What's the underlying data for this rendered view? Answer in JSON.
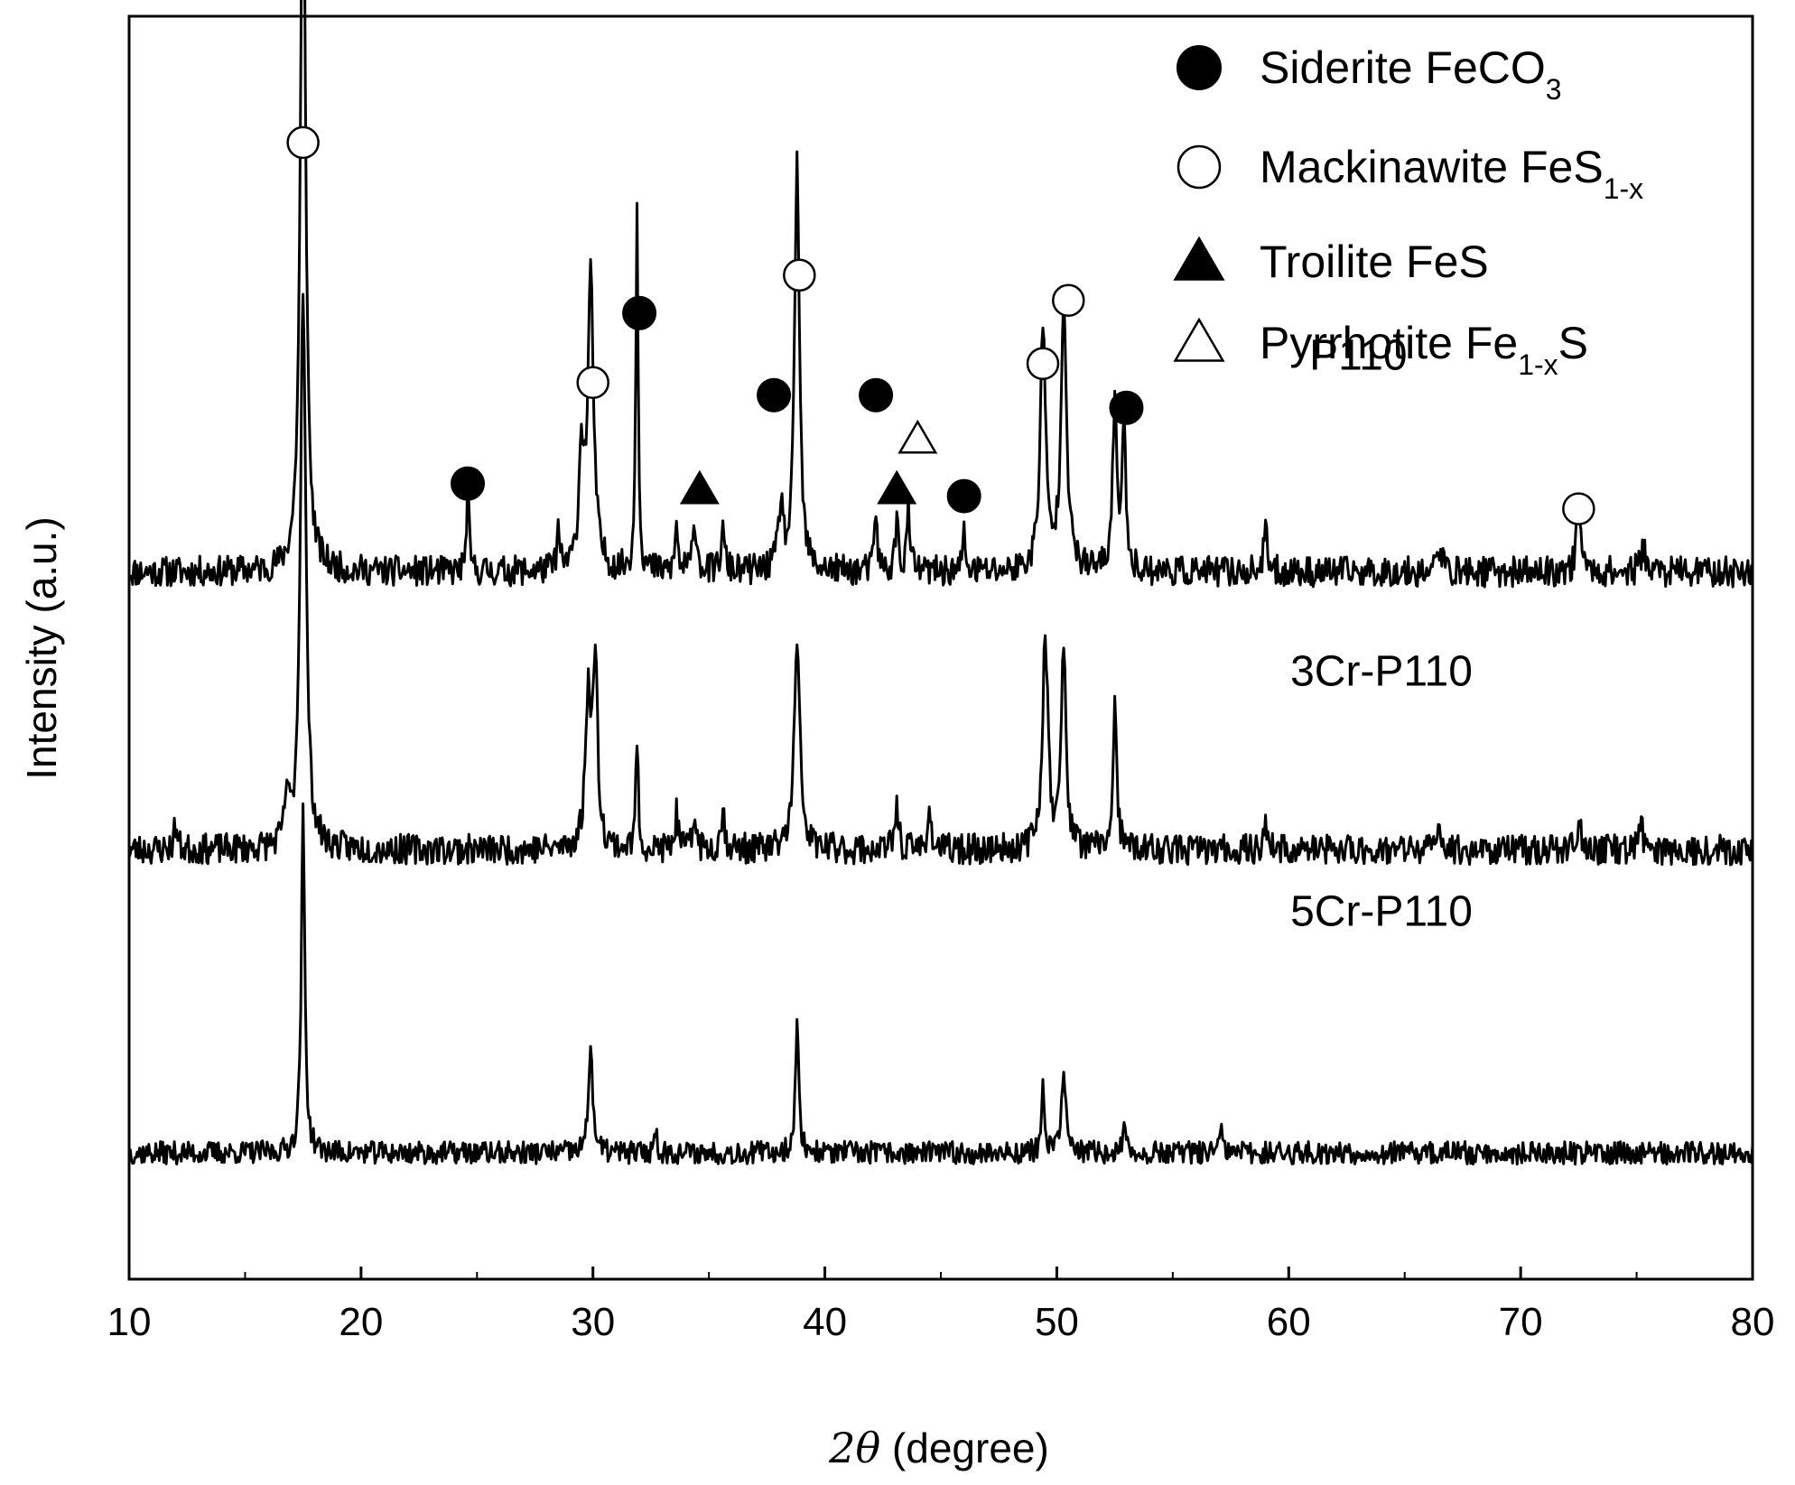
{
  "chart_data": {
    "type": "line",
    "xlabel_prefix": "2",
    "xlabel_symbol": "θ",
    "xlabel_suffix": " (degree)",
    "ylabel": "Intensity (a.u.)",
    "xlim": [
      10,
      80
    ],
    "xticks": [
      "10",
      "20",
      "30",
      "40",
      "50",
      "60",
      "70",
      "80"
    ],
    "y_ticks_shown": false,
    "series": [
      {
        "name": "P110",
        "baseline": 0.56,
        "noise": 0.012,
        "seed": 11,
        "peaks": [
          {
            "x": 17.5,
            "h": 0.62,
            "w": 0.13
          },
          {
            "x": 24.6,
            "h": 0.07,
            "w": 0.06
          },
          {
            "x": 28.5,
            "h": 0.03,
            "w": 0.07
          },
          {
            "x": 29.5,
            "h": 0.09,
            "w": 0.12
          },
          {
            "x": 29.9,
            "h": 0.23,
            "w": 0.15
          },
          {
            "x": 31.9,
            "h": 0.29,
            "w": 0.06
          },
          {
            "x": 33.6,
            "h": 0.04,
            "w": 0.06
          },
          {
            "x": 34.4,
            "h": 0.04,
            "w": 0.1
          },
          {
            "x": 35.6,
            "h": 0.03,
            "w": 0.1
          },
          {
            "x": 38.1,
            "h": 0.05,
            "w": 0.12
          },
          {
            "x": 38.8,
            "h": 0.33,
            "w": 0.12
          },
          {
            "x": 42.2,
            "h": 0.05,
            "w": 0.07
          },
          {
            "x": 43.1,
            "h": 0.04,
            "w": 0.08
          },
          {
            "x": 43.6,
            "h": 0.05,
            "w": 0.08
          },
          {
            "x": 46.0,
            "h": 0.03,
            "w": 0.07
          },
          {
            "x": 49.4,
            "h": 0.19,
            "w": 0.14
          },
          {
            "x": 50.3,
            "h": 0.22,
            "w": 0.14
          },
          {
            "x": 52.5,
            "h": 0.14,
            "w": 0.1
          },
          {
            "x": 52.9,
            "h": 0.11,
            "w": 0.1
          },
          {
            "x": 59.0,
            "h": 0.03,
            "w": 0.1
          },
          {
            "x": 66.5,
            "h": 0.02,
            "w": 0.12
          },
          {
            "x": 72.5,
            "h": 0.06,
            "w": 0.1
          },
          {
            "x": 75.3,
            "h": 0.02,
            "w": 0.12
          }
        ]
      },
      {
        "name": "3Cr-P110",
        "baseline": 0.34,
        "noise": 0.012,
        "seed": 23,
        "peaks": [
          {
            "x": 12.0,
            "h": 0.02,
            "w": 0.08
          },
          {
            "x": 16.8,
            "h": 0.04,
            "w": 0.1
          },
          {
            "x": 17.5,
            "h": 0.45,
            "w": 0.14
          },
          {
            "x": 29.8,
            "h": 0.12,
            "w": 0.14
          },
          {
            "x": 30.1,
            "h": 0.14,
            "w": 0.12
          },
          {
            "x": 31.9,
            "h": 0.09,
            "w": 0.06
          },
          {
            "x": 33.6,
            "h": 0.03,
            "w": 0.07
          },
          {
            "x": 34.4,
            "h": 0.03,
            "w": 0.08
          },
          {
            "x": 35.6,
            "h": 0.03,
            "w": 0.1
          },
          {
            "x": 38.8,
            "h": 0.16,
            "w": 0.15
          },
          {
            "x": 43.1,
            "h": 0.04,
            "w": 0.08
          },
          {
            "x": 44.5,
            "h": 0.03,
            "w": 0.1
          },
          {
            "x": 49.5,
            "h": 0.17,
            "w": 0.14
          },
          {
            "x": 50.3,
            "h": 0.16,
            "w": 0.12
          },
          {
            "x": 52.5,
            "h": 0.11,
            "w": 0.1
          },
          {
            "x": 59.0,
            "h": 0.02,
            "w": 0.1
          },
          {
            "x": 66.5,
            "h": 0.02,
            "w": 0.1
          },
          {
            "x": 72.5,
            "h": 0.02,
            "w": 0.12
          },
          {
            "x": 75.2,
            "h": 0.02,
            "w": 0.1
          }
        ]
      },
      {
        "name": "5Cr-P110",
        "baseline": 0.1,
        "noise": 0.009,
        "seed": 37,
        "peaks": [
          {
            "x": 17.5,
            "h": 0.27,
            "w": 0.09
          },
          {
            "x": 29.9,
            "h": 0.09,
            "w": 0.1
          },
          {
            "x": 32.7,
            "h": 0.02,
            "w": 0.06
          },
          {
            "x": 38.8,
            "h": 0.1,
            "w": 0.09
          },
          {
            "x": 49.4,
            "h": 0.05,
            "w": 0.08
          },
          {
            "x": 50.3,
            "h": 0.07,
            "w": 0.1
          },
          {
            "x": 52.9,
            "h": 0.02,
            "w": 0.07
          },
          {
            "x": 57.1,
            "h": 0.02,
            "w": 0.06
          }
        ]
      }
    ],
    "series_labels": [
      {
        "text": "P110",
        "x": 63,
        "y": 0.72
      },
      {
        "text": "3Cr-P110",
        "x": 64,
        "y": 0.47
      },
      {
        "text": "5Cr-P110",
        "x": 64,
        "y": 0.28
      }
    ],
    "legend": {
      "placement": "top-right",
      "items": [
        {
          "marker": "filled-circle",
          "text": "Siderite FeCO",
          "sub": "3",
          "after": ""
        },
        {
          "marker": "open-circle",
          "text": "Mackinawite FeS",
          "sub": "1-x",
          "after": ""
        },
        {
          "marker": "filled-triangle",
          "text": "Troilite  FeS",
          "sub": "",
          "after": ""
        },
        {
          "marker": "open-triangle",
          "text": "Pyrrhotite Fe",
          "sub": "1-x",
          "after": "S"
        }
      ]
    },
    "annotations": [
      {
        "marker": "open-circle",
        "x": 17.5,
        "y": 0.9
      },
      {
        "marker": "filled-circle",
        "x": 24.6,
        "y": 0.63
      },
      {
        "marker": "open-circle",
        "x": 30.0,
        "y": 0.71
      },
      {
        "marker": "filled-circle",
        "x": 32.0,
        "y": 0.765
      },
      {
        "marker": "filled-triangle",
        "x": 34.6,
        "y": 0.625
      },
      {
        "marker": "filled-circle",
        "x": 37.8,
        "y": 0.7
      },
      {
        "marker": "open-circle",
        "x": 38.9,
        "y": 0.795
      },
      {
        "marker": "filled-circle",
        "x": 42.2,
        "y": 0.7
      },
      {
        "marker": "filled-triangle",
        "x": 43.1,
        "y": 0.625
      },
      {
        "marker": "open-triangle",
        "x": 44.0,
        "y": 0.665
      },
      {
        "marker": "filled-circle",
        "x": 46.0,
        "y": 0.62
      },
      {
        "marker": "open-circle",
        "x": 49.4,
        "y": 0.725
      },
      {
        "marker": "open-circle",
        "x": 50.5,
        "y": 0.775
      },
      {
        "marker": "filled-circle",
        "x": 53.0,
        "y": 0.69
      },
      {
        "marker": "open-circle",
        "x": 72.5,
        "y": 0.61
      }
    ]
  }
}
